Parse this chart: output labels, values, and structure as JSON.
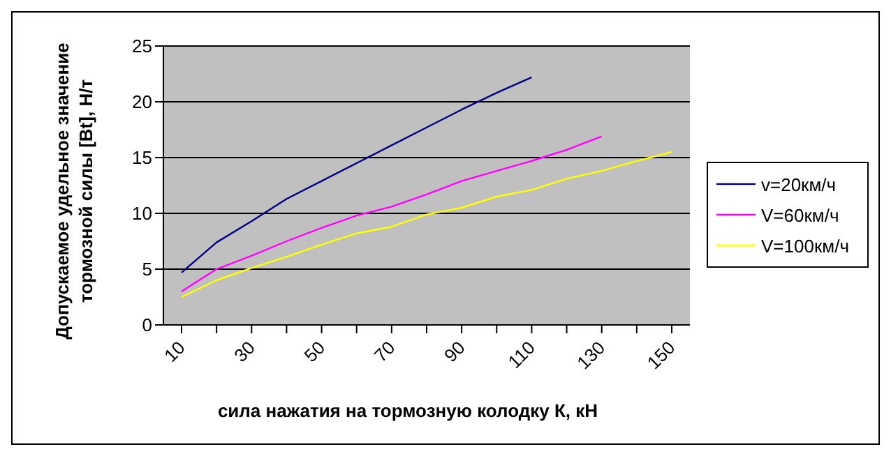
{
  "chart_data": {
    "type": "line",
    "xlabel": "сила нажатия на тормозную колодку К, кН",
    "ylabel": "Допускаемое удельное значение тормозной силы [Вt], Н/т",
    "categories": [
      "10",
      null,
      "30",
      null,
      "50",
      null,
      "70",
      null,
      "90",
      null,
      "110",
      null,
      "130",
      null,
      "150"
    ],
    "series": [
      {
        "name": "v=20км/ч",
        "color": "#000080",
        "values": [
          4.7,
          7.4,
          9.3,
          11.3,
          12.9,
          14.5,
          16.1,
          17.7,
          19.3,
          20.8,
          22.2,
          null,
          null,
          null,
          null
        ]
      },
      {
        "name": "V=60км/ч",
        "color": "#ff00ff",
        "values": [
          3.0,
          5.0,
          6.2,
          7.5,
          8.7,
          9.8,
          10.6,
          11.7,
          12.9,
          13.8,
          14.7,
          15.7,
          16.9,
          null,
          null
        ]
      },
      {
        "name": "V=100км/ч",
        "color": "#ffff00",
        "values": [
          2.5,
          4.0,
          5.1,
          6.1,
          7.2,
          8.2,
          8.8,
          9.9,
          10.5,
          11.5,
          12.1,
          13.1,
          13.8,
          14.7,
          15.5
        ]
      }
    ],
    "ylim": [
      0,
      25
    ],
    "yticks": [
      0,
      5,
      10,
      15,
      20,
      25
    ],
    "grid": "y",
    "legend": "right",
    "marker": "none",
    "line_style": "solid"
  }
}
